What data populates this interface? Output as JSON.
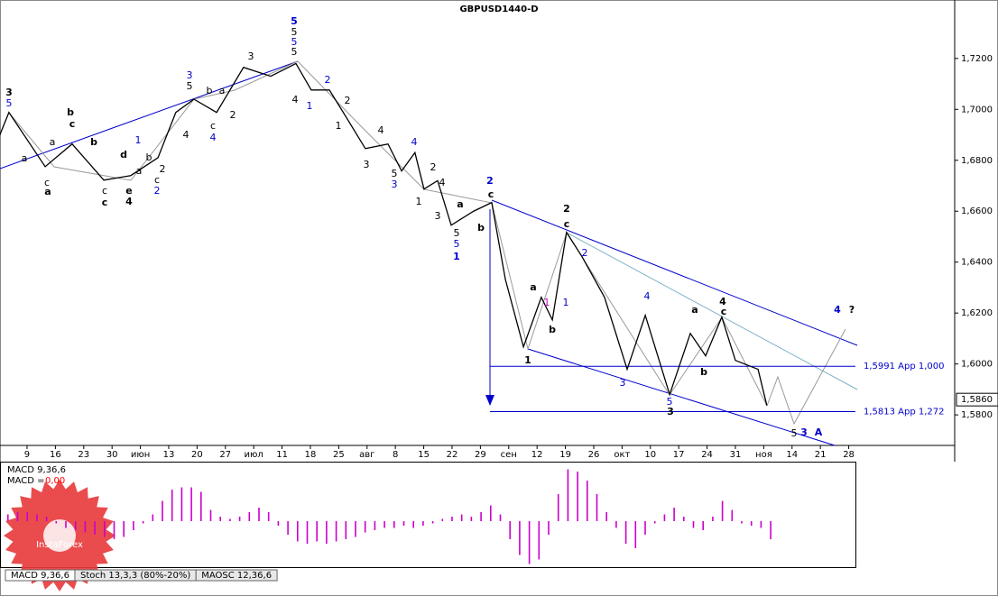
{
  "chart_data": {
    "type": "line",
    "title": "GBPUSD1440-D",
    "series": [
      {
        "name": "GBPUSD",
        "color": "#000000",
        "x": [
          -0.96,
          -0.64,
          0.64,
          1.59,
          2.71,
          3.66,
          4.62,
          5.25,
          5.89,
          6.69,
          7.64,
          8.6,
          9.49,
          10.03,
          10.67,
          11.15,
          11.94,
          12.74,
          13.22,
          13.69,
          14.01,
          14.49,
          14.97,
          15.76,
          16.4,
          16.88,
          17.52,
          18.15,
          18.54,
          19.04,
          19.59,
          20.38,
          21.18,
          21.82,
          22.68,
          23.41,
          23.95,
          24.52,
          25.0,
          25.8,
          26.11
        ],
        "values": [
          1.69,
          1.6988,
          1.6775,
          1.6864,
          1.6722,
          1.674,
          1.681,
          1.6988,
          1.704,
          1.6988,
          1.7165,
          1.713,
          1.718,
          1.7076,
          1.7076,
          1.699,
          1.6846,
          1.6864,
          1.6758,
          1.683,
          1.6687,
          1.672,
          1.6545,
          1.66,
          1.6634,
          1.6333,
          1.6067,
          1.6262,
          1.6173,
          1.6517,
          1.6421,
          1.6262,
          1.5979,
          1.6191,
          1.588,
          1.612,
          1.6032,
          1.6184,
          1.6014,
          1.5979,
          1.5837
        ]
      }
    ],
    "xlim": [
      -0.955,
      32.74
    ],
    "xticks": [
      {
        "value": 0,
        "label": "9"
      },
      {
        "value": 1,
        "label": "16"
      },
      {
        "value": 2,
        "label": "23"
      },
      {
        "value": 3,
        "label": "30"
      },
      {
        "value": 4,
        "label": "июн"
      },
      {
        "value": 5,
        "label": "13"
      },
      {
        "value": 6,
        "label": "20"
      },
      {
        "value": 7,
        "label": "27"
      },
      {
        "value": 8,
        "label": "июл"
      },
      {
        "value": 9,
        "label": "11"
      },
      {
        "value": 10,
        "label": "18"
      },
      {
        "value": 11,
        "label": "25"
      },
      {
        "value": 12,
        "label": "авг"
      },
      {
        "value": 13,
        "label": "8"
      },
      {
        "value": 14,
        "label": "15"
      },
      {
        "value": 15,
        "label": "22"
      },
      {
        "value": 16,
        "label": "29"
      },
      {
        "value": 17,
        "label": "сен"
      },
      {
        "value": 18,
        "label": "12"
      },
      {
        "value": 19,
        "label": "19"
      },
      {
        "value": 20,
        "label": "26"
      },
      {
        "value": 21,
        "label": "окт"
      },
      {
        "value": 22,
        "label": "10"
      },
      {
        "value": 23,
        "label": "17"
      },
      {
        "value": 24,
        "label": "24"
      },
      {
        "value": 25,
        "label": "31"
      },
      {
        "value": 26,
        "label": "ноя"
      },
      {
        "value": 27,
        "label": "14"
      },
      {
        "value": 28,
        "label": "21"
      },
      {
        "value": 29,
        "label": "28"
      }
    ],
    "ylim": [
      1.568,
      1.738
    ],
    "yticks": [
      {
        "value": 1.58,
        "label": "1,5800"
      },
      {
        "value": 1.6,
        "label": "1,6000"
      },
      {
        "value": 1.62,
        "label": "1,6200"
      },
      {
        "value": 1.64,
        "label": "1,6400"
      },
      {
        "value": 1.66,
        "label": "1,6600"
      },
      {
        "value": 1.68,
        "label": "1,6800"
      },
      {
        "value": 1.7,
        "label": "1,7000"
      },
      {
        "value": 1.72,
        "label": "1,7200"
      }
    ],
    "current_price": {
      "value": 1.586,
      "label": "1,5860"
    },
    "levels": [
      {
        "value": 1.5991,
        "label": "1,5991 App 1,000"
      },
      {
        "value": 1.5813,
        "label": "1,5813 App 1,272"
      }
    ],
    "annotations": [
      {
        "text": "3",
        "color": "#000000"
      },
      {
        "text": "5",
        "color": "#0000cc"
      },
      {
        "text": "b",
        "color": "#000000"
      },
      {
        "text": "c",
        "color": "#000000"
      },
      {
        "text": "b",
        "color": "#000000"
      },
      {
        "text": "a",
        "color": "#000000"
      },
      {
        "text": "a",
        "color": "#000000"
      },
      {
        "text": "c",
        "color": "#000000"
      },
      {
        "text": "a",
        "color": "#000000"
      },
      {
        "text": "c",
        "color": "#000000"
      },
      {
        "text": "c",
        "color": "#000000"
      },
      {
        "text": "d",
        "color": "#000000"
      },
      {
        "text": "e",
        "color": "#000000"
      },
      {
        "text": "4",
        "color": "#000000"
      },
      {
        "text": "1",
        "color": "#0000cc"
      },
      {
        "text": "a",
        "color": "#000000"
      },
      {
        "text": "c",
        "color": "#000000"
      },
      {
        "text": "2",
        "color": "#0000cc"
      },
      {
        "text": "2",
        "color": "#000000"
      },
      {
        "text": "b",
        "color": "#000000"
      },
      {
        "text": "3",
        "color": "#0000cc"
      },
      {
        "text": "5",
        "color": "#000000"
      },
      {
        "text": "b",
        "color": "#000000"
      },
      {
        "text": "c",
        "color": "#000000"
      },
      {
        "text": "4",
        "color": "#0000cc"
      },
      {
        "text": "a",
        "color": "#000000"
      },
      {
        "text": "4",
        "color": "#000000"
      },
      {
        "text": "2",
        "color": "#000000"
      },
      {
        "text": "3",
        "color": "#000000"
      },
      {
        "text": "5",
        "color": "#0000cc"
      },
      {
        "text": "5",
        "color": "#000000"
      },
      {
        "text": "5",
        "color": "#0000cc"
      },
      {
        "text": "5",
        "color": "#000000"
      },
      {
        "text": "4",
        "color": "#000000"
      },
      {
        "text": "1",
        "color": "#0000cc"
      },
      {
        "text": "2",
        "color": "#0000cc"
      },
      {
        "text": "2",
        "color": "#000000"
      },
      {
        "text": "1",
        "color": "#000000"
      },
      {
        "text": "4",
        "color": "#000000"
      },
      {
        "text": "4",
        "color": "#0000cc"
      },
      {
        "text": "3",
        "color": "#000000"
      },
      {
        "text": "5",
        "color": "#000000"
      },
      {
        "text": "3",
        "color": "#0000cc"
      },
      {
        "text": "2",
        "color": "#000000"
      },
      {
        "text": "4",
        "color": "#000000"
      },
      {
        "text": "1",
        "color": "#000000"
      },
      {
        "text": "3",
        "color": "#000000"
      },
      {
        "text": "5",
        "color": "#000000"
      },
      {
        "text": "5",
        "color": "#0000cc"
      },
      {
        "text": "1",
        "color": "#0000cc"
      },
      {
        "text": "a",
        "color": "#000000"
      },
      {
        "text": "b",
        "color": "#000000"
      },
      {
        "text": "2",
        "color": "#0000cc"
      },
      {
        "text": "c",
        "color": "#000000"
      },
      {
        "text": "1",
        "color": "#cc00cc"
      },
      {
        "text": "a",
        "color": "#000000"
      },
      {
        "text": "b",
        "color": "#000000"
      },
      {
        "text": "1",
        "color": "#0000cc"
      },
      {
        "text": "1",
        "color": "#000000"
      },
      {
        "text": "2",
        "color": "#000000"
      },
      {
        "text": "c",
        "color": "#000000"
      },
      {
        "text": "2",
        "color": "#0000cc"
      },
      {
        "text": "4",
        "color": "#0000cc"
      },
      {
        "text": "3",
        "color": "#0000cc"
      },
      {
        "text": "5",
        "color": "#0000cc"
      },
      {
        "text": "3",
        "color": "#000000"
      },
      {
        "text": "a",
        "color": "#000000"
      },
      {
        "text": "b",
        "color": "#000000"
      },
      {
        "text": "4",
        "color": "#000000"
      },
      {
        "text": "c",
        "color": "#000000"
      },
      {
        "text": "5",
        "color": "#000000"
      },
      {
        "text": "3",
        "color": "#0000cc"
      },
      {
        "text": "A",
        "color": "#0000cc"
      },
      {
        "text": "4",
        "color": "#0000cc"
      },
      {
        "text": "?",
        "color": "#000000"
      }
    ],
    "indicator": {
      "type": "bar",
      "title": "MACD 9,36,6",
      "value_text": "MACD =",
      "value_label": "0,00",
      "color": "#cc00cc",
      "ylim": [
        -2,
        2.6
      ],
      "values": [
        0.3,
        0.4,
        0.4,
        0.3,
        0.2,
        -0.1,
        -0.3,
        -0.4,
        -0.5,
        -0.6,
        -0.7,
        -0.8,
        -0.7,
        -0.4,
        -0.1,
        0.3,
        0.9,
        1.4,
        1.5,
        1.5,
        1.3,
        0.5,
        0.2,
        0.1,
        0.2,
        0.4,
        0.6,
        0.4,
        -0.2,
        -0.6,
        -0.9,
        -1.0,
        -0.9,
        -1.0,
        -0.9,
        -0.8,
        -0.7,
        -0.5,
        -0.4,
        -0.3,
        -0.3,
        -0.2,
        -0.3,
        -0.2,
        -0.1,
        0.1,
        0.2,
        0.3,
        0.2,
        0.4,
        0.7,
        0.3,
        -0.8,
        -1.5,
        -1.9,
        -1.7,
        -0.6,
        1.2,
        2.3,
        2.2,
        1.8,
        1.2,
        0.4,
        -0.3,
        -1.0,
        -1.2,
        -0.6,
        -0.1,
        0.3,
        0.6,
        0.2,
        -0.3,
        -0.4,
        0.2,
        0.9,
        0.5,
        -0.1,
        -0.2,
        -0.3,
        -0.8
      ]
    },
    "tabs": [
      "MACD 9,36,6",
      "Stoch 13,3,3 (80%-20%)",
      "MAOSC 12,36,6"
    ],
    "logo": "InstaForex"
  }
}
